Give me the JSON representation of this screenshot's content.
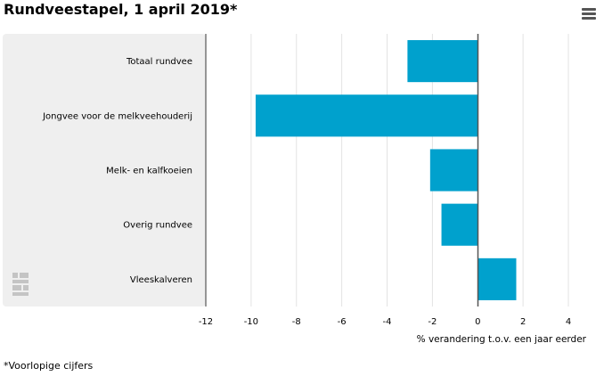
{
  "header": {
    "title": "Rundveestapel, 1 april 2019*"
  },
  "footnote": "*Voorlopige cijfers",
  "icons": {
    "menu": "hamburger-menu-icon",
    "logo": "cbs-logo-icon"
  },
  "chart_data": {
    "type": "bar",
    "orientation": "horizontal",
    "categories": [
      "Totaal rundvee",
      "Jongvee voor de melkveehouderij",
      "Melk- en kalfkoeien",
      "Overig rundvee",
      "Vleeskalveren"
    ],
    "values": [
      -3.1,
      -9.8,
      -2.1,
      -1.6,
      1.7
    ],
    "xlabel": "% verandering t.o.v. een jaar eerder",
    "xlim": [
      -12,
      4
    ],
    "xticks": [
      -12,
      -10,
      -8,
      -6,
      -4,
      -2,
      0,
      2,
      4
    ],
    "grid": true,
    "bar_color": "#00a1cd",
    "category_panel_color": "#efefef"
  }
}
